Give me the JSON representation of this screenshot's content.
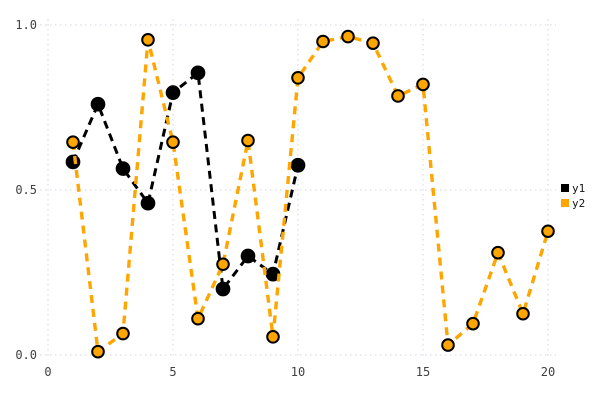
{
  "figure": {
    "background_color": "#ffffff",
    "grid_color": "#d3d3e0",
    "tick_label_color": "#414141"
  },
  "chart_data": {
    "type": "line",
    "title": "",
    "xlabel": "",
    "ylabel": "",
    "xlim": [
      0,
      20.5
    ],
    "ylim": [
      0.0,
      1.0
    ],
    "x_ticks": [
      0,
      5,
      10,
      15,
      20
    ],
    "x_tick_labels": [
      "0",
      "5",
      "10",
      "15",
      "20"
    ],
    "y_ticks": [
      0.0,
      0.5,
      1.0
    ],
    "y_tick_labels": [
      "0.0",
      "0.5",
      "1.0"
    ],
    "grid": true,
    "grid_style": "dotted",
    "line_style": "dashed",
    "marker": "circle",
    "legend_position": "center-right",
    "series": [
      {
        "name": "y1",
        "color": "#000000",
        "x": [
          1,
          2,
          3,
          4,
          5,
          6,
          7,
          8,
          9,
          10
        ],
        "values": [
          0.585,
          0.76,
          0.565,
          0.46,
          0.795,
          0.855,
          0.2,
          0.3,
          0.245,
          0.575
        ]
      },
      {
        "name": "y2",
        "color": "#FFA500",
        "x": [
          1,
          2,
          3,
          4,
          5,
          6,
          7,
          8,
          9,
          10,
          11,
          12,
          13,
          14,
          15,
          16,
          17,
          18,
          19,
          20
        ],
        "values": [
          0.645,
          0.01,
          0.065,
          0.955,
          0.645,
          0.11,
          0.275,
          0.65,
          0.055,
          0.84,
          0.95,
          0.965,
          0.945,
          0.785,
          0.82,
          0.03,
          0.095,
          0.31,
          0.125,
          0.375
        ]
      }
    ]
  }
}
